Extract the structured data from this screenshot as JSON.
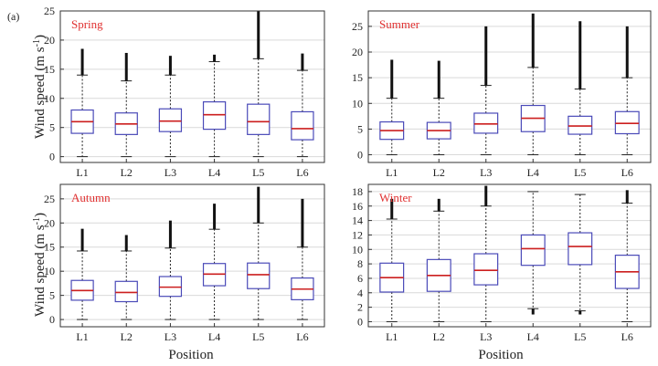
{
  "figure": {
    "panel_tag": "(a)",
    "ylabel_main": "Wind speed (m s",
    "ylabel_sup": "-1",
    "ylabel_close": ")",
    "xlabel": "Position"
  },
  "colors": {
    "box": "#4a4ab8",
    "median": "#cc1f1f",
    "whisker": "#222222",
    "outlier": "#111111",
    "grid": "#d9d9d9",
    "season_label": "#e03030"
  },
  "chart_data": [
    {
      "type": "box",
      "title": "Spring",
      "xlabel": "",
      "ylabel": "Wind speed (m s-1)",
      "categories": [
        "L1",
        "L2",
        "L3",
        "L4",
        "L5",
        "L6"
      ],
      "ylim": [
        -1,
        25
      ],
      "yticks": [
        0,
        5,
        10,
        15,
        20,
        25
      ],
      "boxes": [
        {
          "min": 0,
          "q1": 4.0,
          "median": 6.0,
          "q3": 8.0,
          "max": 14.0,
          "outlier_top": 18.5
        },
        {
          "min": 0,
          "q1": 3.8,
          "median": 5.6,
          "q3": 7.5,
          "max": 13.0,
          "outlier_top": 17.8
        },
        {
          "min": 0,
          "q1": 4.3,
          "median": 6.1,
          "q3": 8.2,
          "max": 14.0,
          "outlier_top": 17.3
        },
        {
          "min": 0,
          "q1": 4.7,
          "median": 7.2,
          "q3": 9.4,
          "max": 16.3,
          "outlier_top": 17.5
        },
        {
          "min": 0,
          "q1": 3.8,
          "median": 6.0,
          "q3": 9.0,
          "max": 16.8,
          "outlier_top": 25.0
        },
        {
          "min": 0,
          "q1": 2.9,
          "median": 4.8,
          "q3": 7.7,
          "max": 14.8,
          "outlier_top": 17.7
        }
      ]
    },
    {
      "type": "box",
      "title": "Summer",
      "xlabel": "",
      "ylabel": "",
      "categories": [
        "L1",
        "L2",
        "L3",
        "L4",
        "L5",
        "L6"
      ],
      "ylim": [
        -1.5,
        28
      ],
      "yticks": [
        0,
        5,
        10,
        15,
        20,
        25
      ],
      "boxes": [
        {
          "min": 0,
          "q1": 3.0,
          "median": 4.7,
          "q3": 6.4,
          "max": 11.0,
          "outlier_top": 18.5
        },
        {
          "min": 0,
          "q1": 3.1,
          "median": 4.7,
          "q3": 6.3,
          "max": 11.0,
          "outlier_top": 18.3
        },
        {
          "min": 0,
          "q1": 4.2,
          "median": 6.0,
          "q3": 8.1,
          "max": 13.5,
          "outlier_top": 25.0
        },
        {
          "min": 0,
          "q1": 4.5,
          "median": 7.1,
          "q3": 9.6,
          "max": 17.0,
          "outlier_top": 27.5
        },
        {
          "min": 0,
          "q1": 4.0,
          "median": 5.6,
          "q3": 7.5,
          "max": 12.8,
          "outlier_top": 26.0
        },
        {
          "min": 0,
          "q1": 4.1,
          "median": 6.1,
          "q3": 8.4,
          "max": 15.0,
          "outlier_top": 25.0
        }
      ]
    },
    {
      "type": "box",
      "title": "Autumn",
      "xlabel": "Position",
      "ylabel": "Wind speed (m s-1)",
      "categories": [
        "L1",
        "L2",
        "L3",
        "L4",
        "L5",
        "L6"
      ],
      "ylim": [
        -1.5,
        28
      ],
      "yticks": [
        0,
        5,
        10,
        15,
        20,
        25
      ],
      "boxes": [
        {
          "min": 0,
          "q1": 4.0,
          "median": 6.0,
          "q3": 8.1,
          "max": 14.2,
          "outlier_top": 18.8
        },
        {
          "min": 0,
          "q1": 3.7,
          "median": 5.6,
          "q3": 7.9,
          "max": 14.2,
          "outlier_top": 17.5
        },
        {
          "min": 0,
          "q1": 4.8,
          "median": 6.7,
          "q3": 8.9,
          "max": 14.8,
          "outlier_top": 20.5
        },
        {
          "min": 0,
          "q1": 7.0,
          "median": 9.4,
          "q3": 11.6,
          "max": 18.7,
          "outlier_top": 24.0
        },
        {
          "min": 0,
          "q1": 6.4,
          "median": 9.3,
          "q3": 11.7,
          "max": 20.0,
          "outlier_top": 27.5
        },
        {
          "min": 0,
          "q1": 4.1,
          "median": 6.3,
          "q3": 8.6,
          "max": 15.0,
          "outlier_top": 25.0
        }
      ]
    },
    {
      "type": "box",
      "title": "Winter",
      "xlabel": "Position",
      "ylabel": "",
      "categories": [
        "L1",
        "L2",
        "L3",
        "L4",
        "L5",
        "L6"
      ],
      "ylim": [
        -0.7,
        19
      ],
      "yticks": [
        0,
        2,
        4,
        6,
        8,
        10,
        12,
        14,
        16,
        18
      ],
      "boxes": [
        {
          "min": 0,
          "q1": 4.1,
          "median": 6.1,
          "q3": 8.1,
          "max": 14.2,
          "outlier_top": 17.0
        },
        {
          "min": 0,
          "q1": 4.2,
          "median": 6.4,
          "q3": 8.6,
          "max": 15.3,
          "outlier_top": 17.0
        },
        {
          "min": 0,
          "q1": 5.1,
          "median": 7.1,
          "q3": 9.4,
          "max": 16.0,
          "outlier_top": 18.8
        },
        {
          "min": 1.8,
          "q1": 7.8,
          "median": 10.1,
          "q3": 12.0,
          "max": 18.0,
          "outlier_top": 18.0,
          "outlier_bottom": 1.0
        },
        {
          "min": 1.5,
          "q1": 7.9,
          "median": 10.4,
          "q3": 12.3,
          "max": 17.6,
          "outlier_top": 17.6,
          "outlier_bottom": 1.0
        },
        {
          "min": 0,
          "q1": 4.6,
          "median": 6.9,
          "q3": 9.2,
          "max": 16.4,
          "outlier_top": 18.2
        }
      ]
    }
  ]
}
